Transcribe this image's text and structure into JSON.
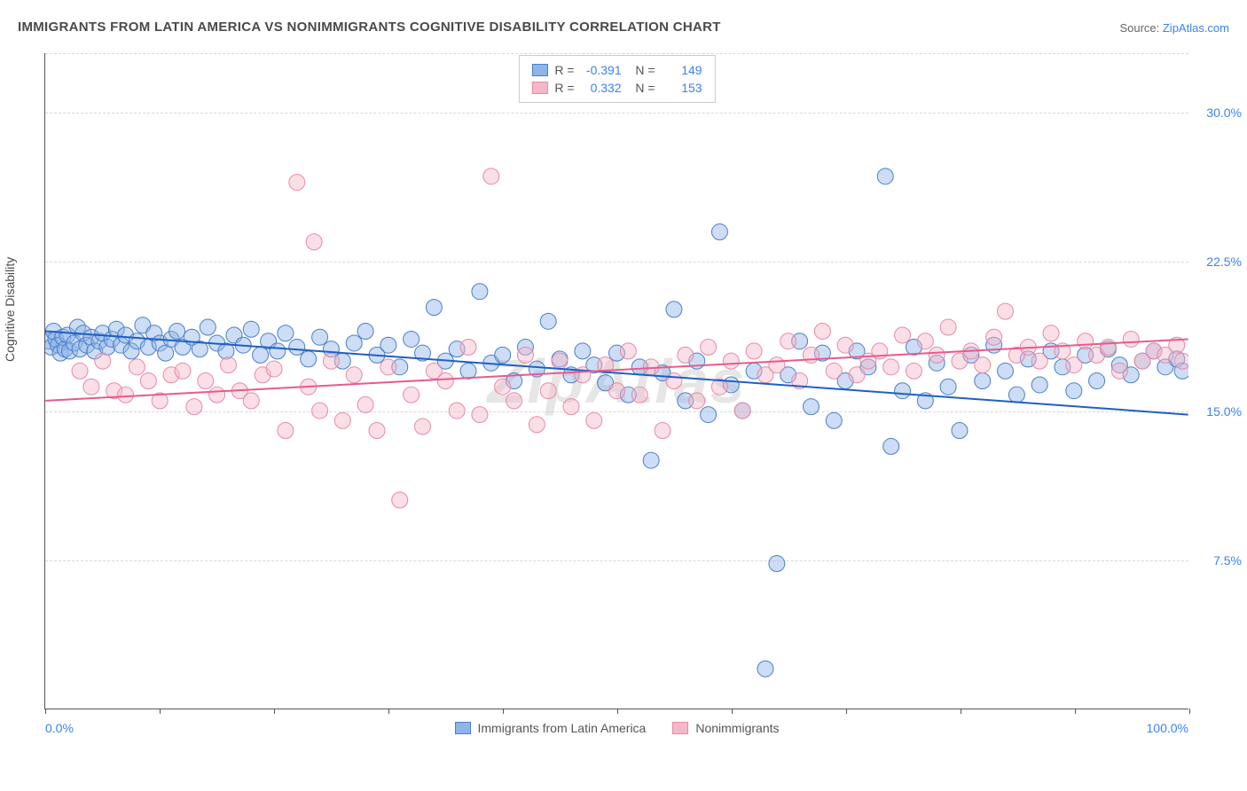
{
  "title": "IMMIGRANTS FROM LATIN AMERICA VS NONIMMIGRANTS COGNITIVE DISABILITY CORRELATION CHART",
  "source_prefix": "Source: ",
  "source_link": "ZipAtlas.com",
  "watermark": "ZipAtlas",
  "chart": {
    "type": "scatter",
    "y_axis_title": "Cognitive Disability",
    "background_color": "#ffffff",
    "grid_color": "#d8d8d8",
    "axis_color": "#555555",
    "text_color": "#4a4a4a",
    "value_color": "#3b82f6",
    "xlim": [
      0,
      100
    ],
    "ylim": [
      0,
      33
    ],
    "x_ticks": [
      0,
      10,
      20,
      30,
      40,
      50,
      60,
      70,
      80,
      90,
      100
    ],
    "x_min_label": "0.0%",
    "x_max_label": "100.0%",
    "y_gridlines": [
      {
        "value": 7.5,
        "label": "7.5%"
      },
      {
        "value": 15.0,
        "label": "15.0%"
      },
      {
        "value": 22.5,
        "label": "22.5%"
      },
      {
        "value": 30.0,
        "label": "30.0%"
      }
    ],
    "marker_radius": 9,
    "marker_opacity": 0.45,
    "line_width": 2,
    "series": [
      {
        "name": "Immigrants from Latin America",
        "fill_color": "#8fb4e8",
        "stroke_color": "#4a7fc9",
        "line_color": "#1f5fc4",
        "R": "-0.391",
        "N": "149",
        "trend": {
          "y_at_x0": 19.0,
          "y_at_x100": 14.8
        },
        "points": [
          [
            0.3,
            18.5
          ],
          [
            0.5,
            18.2
          ],
          [
            0.7,
            19.0
          ],
          [
            0.9,
            18.6
          ],
          [
            1.1,
            18.3
          ],
          [
            1.3,
            17.9
          ],
          [
            1.5,
            18.7
          ],
          [
            1.7,
            18.1
          ],
          [
            1.9,
            18.8
          ],
          [
            2.1,
            18.0
          ],
          [
            2.5,
            18.4
          ],
          [
            2.8,
            19.2
          ],
          [
            3.0,
            18.1
          ],
          [
            3.3,
            18.9
          ],
          [
            3.6,
            18.3
          ],
          [
            4.0,
            18.7
          ],
          [
            4.3,
            18.0
          ],
          [
            4.7,
            18.5
          ],
          [
            5.0,
            18.9
          ],
          [
            5.4,
            18.2
          ],
          [
            5.8,
            18.6
          ],
          [
            6.2,
            19.1
          ],
          [
            6.6,
            18.3
          ],
          [
            7.0,
            18.8
          ],
          [
            7.5,
            18.0
          ],
          [
            8.0,
            18.5
          ],
          [
            8.5,
            19.3
          ],
          [
            9.0,
            18.2
          ],
          [
            9.5,
            18.9
          ],
          [
            10.0,
            18.4
          ],
          [
            10.5,
            17.9
          ],
          [
            11.0,
            18.6
          ],
          [
            11.5,
            19.0
          ],
          [
            12.0,
            18.2
          ],
          [
            12.8,
            18.7
          ],
          [
            13.5,
            18.1
          ],
          [
            14.2,
            19.2
          ],
          [
            15.0,
            18.4
          ],
          [
            15.8,
            18.0
          ],
          [
            16.5,
            18.8
          ],
          [
            17.3,
            18.3
          ],
          [
            18.0,
            19.1
          ],
          [
            18.8,
            17.8
          ],
          [
            19.5,
            18.5
          ],
          [
            20.3,
            18.0
          ],
          [
            21.0,
            18.9
          ],
          [
            22.0,
            18.2
          ],
          [
            23.0,
            17.6
          ],
          [
            24.0,
            18.7
          ],
          [
            25.0,
            18.1
          ],
          [
            26.0,
            17.5
          ],
          [
            27.0,
            18.4
          ],
          [
            28.0,
            19.0
          ],
          [
            29.0,
            17.8
          ],
          [
            30.0,
            18.3
          ],
          [
            31.0,
            17.2
          ],
          [
            32.0,
            18.6
          ],
          [
            33.0,
            17.9
          ],
          [
            34.0,
            20.2
          ],
          [
            35.0,
            17.5
          ],
          [
            36.0,
            18.1
          ],
          [
            37.0,
            17.0
          ],
          [
            38.0,
            21.0
          ],
          [
            39.0,
            17.4
          ],
          [
            40.0,
            17.8
          ],
          [
            41.0,
            16.5
          ],
          [
            42.0,
            18.2
          ],
          [
            43.0,
            17.1
          ],
          [
            44.0,
            19.5
          ],
          [
            45.0,
            17.6
          ],
          [
            46.0,
            16.8
          ],
          [
            47.0,
            18.0
          ],
          [
            48.0,
            17.3
          ],
          [
            49.0,
            16.4
          ],
          [
            50.0,
            17.9
          ],
          [
            51.0,
            15.8
          ],
          [
            52.0,
            17.2
          ],
          [
            53.0,
            12.5
          ],
          [
            54.0,
            16.9
          ],
          [
            55.0,
            20.1
          ],
          [
            56.0,
            15.5
          ],
          [
            57.0,
            17.5
          ],
          [
            58.0,
            14.8
          ],
          [
            59.0,
            24.0
          ],
          [
            60.0,
            16.3
          ],
          [
            61.0,
            15.0
          ],
          [
            62.0,
            17.0
          ],
          [
            63.0,
            2.0
          ],
          [
            64.0,
            7.3
          ],
          [
            65.0,
            16.8
          ],
          [
            66.0,
            18.5
          ],
          [
            67.0,
            15.2
          ],
          [
            68.0,
            17.9
          ],
          [
            69.0,
            14.5
          ],
          [
            70.0,
            16.5
          ],
          [
            71.0,
            18.0
          ],
          [
            72.0,
            17.2
          ],
          [
            73.5,
            26.8
          ],
          [
            74.0,
            13.2
          ],
          [
            75.0,
            16.0
          ],
          [
            76.0,
            18.2
          ],
          [
            77.0,
            15.5
          ],
          [
            78.0,
            17.4
          ],
          [
            79.0,
            16.2
          ],
          [
            80.0,
            14.0
          ],
          [
            81.0,
            17.8
          ],
          [
            82.0,
            16.5
          ],
          [
            83.0,
            18.3
          ],
          [
            84.0,
            17.0
          ],
          [
            85.0,
            15.8
          ],
          [
            86.0,
            17.6
          ],
          [
            87.0,
            16.3
          ],
          [
            88.0,
            18.0
          ],
          [
            89.0,
            17.2
          ],
          [
            90.0,
            16.0
          ],
          [
            91.0,
            17.8
          ],
          [
            92.0,
            16.5
          ],
          [
            93.0,
            18.1
          ],
          [
            94.0,
            17.3
          ],
          [
            95.0,
            16.8
          ],
          [
            96.0,
            17.5
          ],
          [
            97.0,
            18.0
          ],
          [
            98.0,
            17.2
          ],
          [
            99.0,
            17.6
          ],
          [
            99.5,
            17.0
          ]
        ]
      },
      {
        "name": "Nonimmigrants",
        "fill_color": "#f5b8ca",
        "stroke_color": "#e889a6",
        "line_color": "#e85a8a",
        "R": "0.332",
        "N": "153",
        "trend": {
          "y_at_x0": 15.5,
          "y_at_x100": 18.6
        },
        "points": [
          [
            3.0,
            17.0
          ],
          [
            4.0,
            16.2
          ],
          [
            5.0,
            17.5
          ],
          [
            6.0,
            16.0
          ],
          [
            7.0,
            15.8
          ],
          [
            8.0,
            17.2
          ],
          [
            9.0,
            16.5
          ],
          [
            10.0,
            15.5
          ],
          [
            11.0,
            16.8
          ],
          [
            12.0,
            17.0
          ],
          [
            13.0,
            15.2
          ],
          [
            14.0,
            16.5
          ],
          [
            15.0,
            15.8
          ],
          [
            16.0,
            17.3
          ],
          [
            17.0,
            16.0
          ],
          [
            18.0,
            15.5
          ],
          [
            19.0,
            16.8
          ],
          [
            20.0,
            17.1
          ],
          [
            21.0,
            14.0
          ],
          [
            22.0,
            26.5
          ],
          [
            23.0,
            16.2
          ],
          [
            23.5,
            23.5
          ],
          [
            24.0,
            15.0
          ],
          [
            25.0,
            17.5
          ],
          [
            26.0,
            14.5
          ],
          [
            27.0,
            16.8
          ],
          [
            28.0,
            15.3
          ],
          [
            29.0,
            14.0
          ],
          [
            30.0,
            17.2
          ],
          [
            31.0,
            10.5
          ],
          [
            32.0,
            15.8
          ],
          [
            33.0,
            14.2
          ],
          [
            34.0,
            17.0
          ],
          [
            35.0,
            16.5
          ],
          [
            36.0,
            15.0
          ],
          [
            37.0,
            18.2
          ],
          [
            38.0,
            14.8
          ],
          [
            39.0,
            26.8
          ],
          [
            40.0,
            16.2
          ],
          [
            41.0,
            15.5
          ],
          [
            42.0,
            17.8
          ],
          [
            43.0,
            14.3
          ],
          [
            44.0,
            16.0
          ],
          [
            45.0,
            17.5
          ],
          [
            46.0,
            15.2
          ],
          [
            47.0,
            16.8
          ],
          [
            48.0,
            14.5
          ],
          [
            49.0,
            17.3
          ],
          [
            50.0,
            16.0
          ],
          [
            51.0,
            18.0
          ],
          [
            52.0,
            15.8
          ],
          [
            53.0,
            17.2
          ],
          [
            54.0,
            14.0
          ],
          [
            55.0,
            16.5
          ],
          [
            56.0,
            17.8
          ],
          [
            57.0,
            15.5
          ],
          [
            58.0,
            18.2
          ],
          [
            59.0,
            16.2
          ],
          [
            60.0,
            17.5
          ],
          [
            61.0,
            15.0
          ],
          [
            62.0,
            18.0
          ],
          [
            63.0,
            16.8
          ],
          [
            64.0,
            17.3
          ],
          [
            65.0,
            18.5
          ],
          [
            66.0,
            16.5
          ],
          [
            67.0,
            17.8
          ],
          [
            68.0,
            19.0
          ],
          [
            69.0,
            17.0
          ],
          [
            70.0,
            18.3
          ],
          [
            71.0,
            16.8
          ],
          [
            72.0,
            17.5
          ],
          [
            73.0,
            18.0
          ],
          [
            74.0,
            17.2
          ],
          [
            75.0,
            18.8
          ],
          [
            76.0,
            17.0
          ],
          [
            77.0,
            18.5
          ],
          [
            78.0,
            17.8
          ],
          [
            79.0,
            19.2
          ],
          [
            80.0,
            17.5
          ],
          [
            81.0,
            18.0
          ],
          [
            82.0,
            17.3
          ],
          [
            83.0,
            18.7
          ],
          [
            84.0,
            20.0
          ],
          [
            85.0,
            17.8
          ],
          [
            86.0,
            18.2
          ],
          [
            87.0,
            17.5
          ],
          [
            88.0,
            18.9
          ],
          [
            89.0,
            18.0
          ],
          [
            90.0,
            17.3
          ],
          [
            91.0,
            18.5
          ],
          [
            92.0,
            17.8
          ],
          [
            93.0,
            18.2
          ],
          [
            94.0,
            17.0
          ],
          [
            95.0,
            18.6
          ],
          [
            96.0,
            17.5
          ],
          [
            97.0,
            18.0
          ],
          [
            98.0,
            17.8
          ],
          [
            99.0,
            18.3
          ],
          [
            99.5,
            17.5
          ]
        ]
      }
    ]
  }
}
